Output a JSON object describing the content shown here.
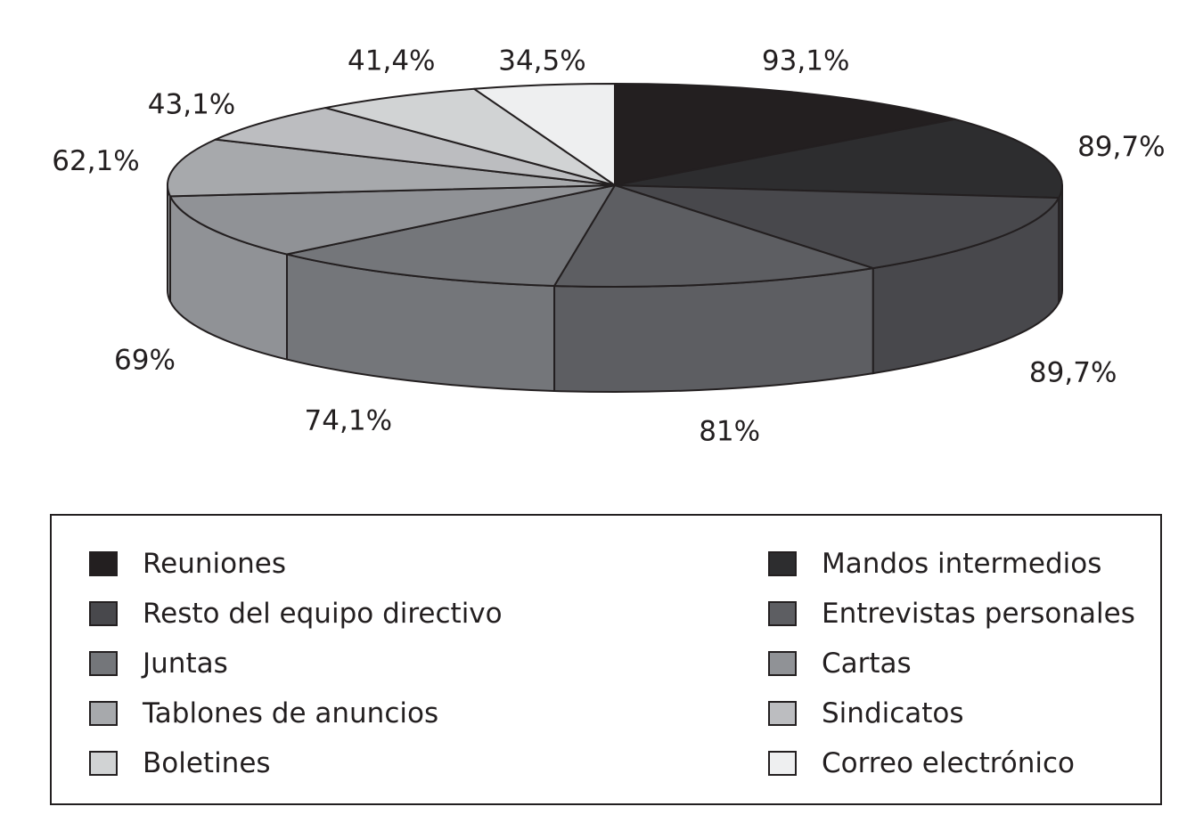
{
  "chart_data": {
    "type": "pie",
    "title": "",
    "slices": [
      {
        "label": "Reuniones",
        "value": 93.1,
        "display": "93,1%",
        "color": "#231f20"
      },
      {
        "label": "Mandos intermedios",
        "value": 89.7,
        "display": "89,7%",
        "color": "#2d2d2f"
      },
      {
        "label": "Resto del equipo directivo",
        "value": 89.7,
        "display": "89,7%",
        "color": "#48484c"
      },
      {
        "label": "Entrevistas personales",
        "value": 81,
        "display": "81%",
        "color": "#5d5e62"
      },
      {
        "label": "Juntas",
        "value": 74.1,
        "display": "74,1%",
        "color": "#74767a"
      },
      {
        "label": "Cartas",
        "value": 69,
        "display": "69%",
        "color": "#909296"
      },
      {
        "label": "Tablones de anuncios",
        "value": 62.1,
        "display": "62,1%",
        "color": "#a7a9ac"
      },
      {
        "label": "Sindicatos",
        "value": 43.1,
        "display": "43,1%",
        "color": "#bcbdc0"
      },
      {
        "label": "Boletines",
        "value": 41.4,
        "display": "41,4%",
        "color": "#d1d3d4"
      },
      {
        "label": "Correo electrónico",
        "value": 34.5,
        "display": "34,5%",
        "color": "#eeeff0"
      }
    ],
    "legend_position": "bottom",
    "legend_layout": "two-columns"
  }
}
